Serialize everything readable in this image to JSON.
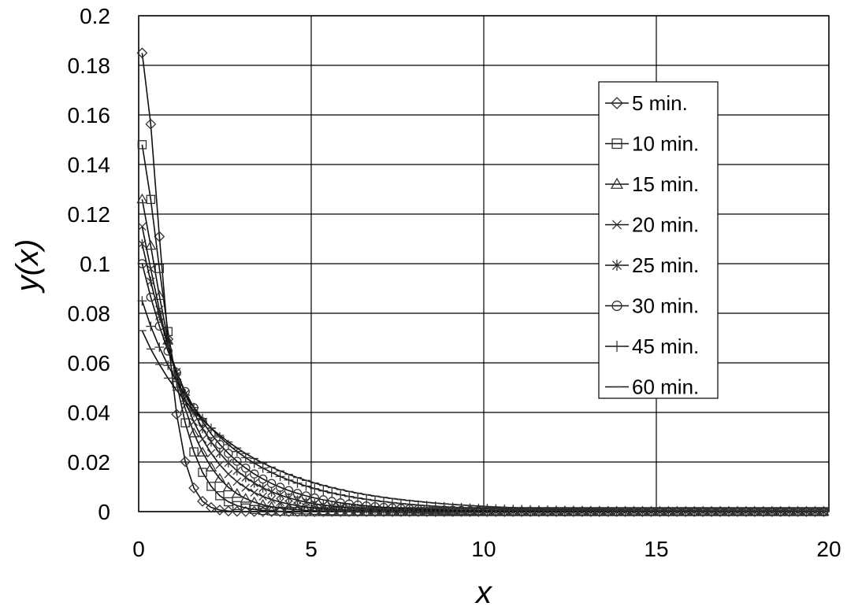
{
  "chart_data": {
    "type": "line",
    "xlabel": "x",
    "ylabel": "y(x)",
    "xlim": [
      0,
      20
    ],
    "ylim": [
      0,
      0.2
    ],
    "xticks": [
      "0",
      "5",
      "10",
      "15",
      "20"
    ],
    "yticks": [
      "0",
      "0.02",
      "0.04",
      "0.06",
      "0.08",
      "0.1",
      "0.12",
      "0.14",
      "0.16",
      "0.18",
      "0.2"
    ],
    "grid": true,
    "legend_position": "top-right",
    "x_step": 0.25,
    "series": [
      {
        "name": "5 min.",
        "marker": "diamond",
        "y0": 0.185,
        "k": 1.55,
        "p": 1.6
      },
      {
        "name": "10 min.",
        "marker": "square",
        "y0": 0.148,
        "k": 1.05,
        "p": 1.35
      },
      {
        "name": "15 min.",
        "marker": "triangle",
        "y0": 0.126,
        "k": 0.85,
        "p": 1.2
      },
      {
        "name": "20 min.",
        "marker": "x",
        "y0": 0.115,
        "k": 0.74,
        "p": 1.1
      },
      {
        "name": "25 min.",
        "marker": "asterisk",
        "y0": 0.108,
        "k": 0.65,
        "p": 1.05
      },
      {
        "name": "30 min.",
        "marker": "circle",
        "y0": 0.1,
        "k": 0.58,
        "p": 1.0
      },
      {
        "name": "45 min.",
        "marker": "plus",
        "y0": 0.085,
        "k": 0.48,
        "p": 0.95
      },
      {
        "name": "60 min.",
        "marker": "dash",
        "y0": 0.073,
        "k": 0.4,
        "p": 0.95
      }
    ]
  }
}
